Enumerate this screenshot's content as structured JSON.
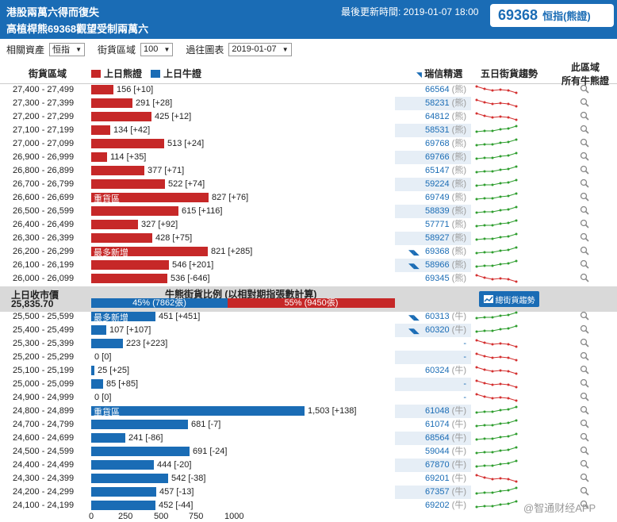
{
  "header": {
    "title_line1": "港股兩萬六得而復失",
    "title_line2": "高植桿熊69368觀望受制兩萬六",
    "update_text": "最後更新時間: 2019-01-07 18:00",
    "code": "69368",
    "code_label": "恒指(熊證)"
  },
  "filters": {
    "asset_label": "相關資產",
    "asset_value": "恒指",
    "zone_label": "街貨區域",
    "zone_value": "100",
    "date_label": "過往圖表",
    "date_value": "2019-01-07"
  },
  "columns": {
    "zone": "街貨區域",
    "bear_legend": "上日熊證",
    "bull_legend": "上日牛證",
    "pick": "瑞信精選",
    "trend": "五日街貨趨勢",
    "all_line1": "此區域",
    "all_line2": "所有牛熊證"
  },
  "colors": {
    "bear": "#c62828",
    "bull": "#1a6cb5",
    "up": "#2e9e2e",
    "down": "#d43030"
  },
  "bear_rows": [
    {
      "range": "27,400 - 27,499",
      "value": 156,
      "change": "+10",
      "label": "156 [+10]",
      "code": "66564",
      "type": "(熊)",
      "pick": false,
      "trend": "down",
      "tag": ""
    },
    {
      "range": "27,300 - 27,399",
      "value": 291,
      "change": "+28",
      "label": "291 [+28]",
      "code": "58231",
      "type": "(熊)",
      "pick": false,
      "trend": "down",
      "tag": ""
    },
    {
      "range": "27,200 - 27,299",
      "value": 425,
      "change": "+12",
      "label": "425 [+12]",
      "code": "64812",
      "type": "(熊)",
      "pick": false,
      "trend": "down",
      "tag": ""
    },
    {
      "range": "27,100 - 27,199",
      "value": 134,
      "change": "+42",
      "label": "134 [+42]",
      "code": "58531",
      "type": "(熊)",
      "pick": false,
      "trend": "up",
      "tag": ""
    },
    {
      "range": "27,000 - 27,099",
      "value": 513,
      "change": "+24",
      "label": "513 [+24]",
      "code": "69768",
      "type": "(熊)",
      "pick": false,
      "trend": "up",
      "tag": ""
    },
    {
      "range": "26,900 - 26,999",
      "value": 114,
      "change": "+35",
      "label": "114 [+35]",
      "code": "69766",
      "type": "(熊)",
      "pick": false,
      "trend": "up",
      "tag": ""
    },
    {
      "range": "26,800 - 26,899",
      "value": 377,
      "change": "+71",
      "label": "377 [+71]",
      "code": "65147",
      "type": "(熊)",
      "pick": false,
      "trend": "up",
      "tag": ""
    },
    {
      "range": "26,700 - 26,799",
      "value": 522,
      "change": "+74",
      "label": "522 [+74]",
      "code": "59224",
      "type": "(熊)",
      "pick": false,
      "trend": "up",
      "tag": ""
    },
    {
      "range": "26,600 - 26,699",
      "value": 827,
      "change": "+76",
      "label": "827 [+76]",
      "code": "69749",
      "type": "(熊)",
      "pick": false,
      "trend": "up",
      "tag": "重貨區"
    },
    {
      "range": "26,500 - 26,599",
      "value": 615,
      "change": "+116",
      "label": "615 [+116]",
      "code": "58839",
      "type": "(熊)",
      "pick": false,
      "trend": "up",
      "tag": ""
    },
    {
      "range": "26,400 - 26,499",
      "value": 327,
      "change": "+92",
      "label": "327 [+92]",
      "code": "57771",
      "type": "(熊)",
      "pick": false,
      "trend": "up",
      "tag": ""
    },
    {
      "range": "26,300 - 26,399",
      "value": 428,
      "change": "+75",
      "label": "428 [+75]",
      "code": "58927",
      "type": "(熊)",
      "pick": false,
      "trend": "up",
      "tag": ""
    },
    {
      "range": "26,200 - 26,299",
      "value": 821,
      "change": "+285",
      "label": "821 [+285]",
      "code": "69368",
      "type": "(熊)",
      "pick": true,
      "trend": "up",
      "tag": "最多新增"
    },
    {
      "range": "26,100 - 26,199",
      "value": 546,
      "change": "+201",
      "label": "546 [+201]",
      "code": "58966",
      "type": "(熊)",
      "pick": true,
      "trend": "up",
      "tag": ""
    },
    {
      "range": "26,000 - 26,099",
      "value": 536,
      "change": "-646",
      "label": "536 [-646]",
      "code": "69345",
      "type": "(熊)",
      "pick": false,
      "trend": "down",
      "tag": ""
    }
  ],
  "middle": {
    "close_label": "上日收市價",
    "close_value": "25,835.70",
    "ratio_title": "牛熊街貨比例 (以相對期指張數計算)",
    "bull_pct": 45,
    "bull_text": "45% (7862張)",
    "bear_pct": 55,
    "bear_text": "55% (9450張)",
    "button_label": "總街貨趨勢"
  },
  "bull_rows": [
    {
      "range": "25,500 - 25,599",
      "value": 451,
      "change": "+451",
      "label": "451 [+451]",
      "code": "60313",
      "type": "(牛)",
      "pick": true,
      "trend": "up",
      "tag": "最多新增"
    },
    {
      "range": "25,400 - 25,499",
      "value": 107,
      "change": "+107",
      "label": "107 [+107]",
      "code": "60320",
      "type": "(牛)",
      "pick": true,
      "trend": "up",
      "tag": ""
    },
    {
      "range": "25,300 - 25,399",
      "value": 223,
      "change": "+223",
      "label": "223 [+223]",
      "code": "-",
      "type": "",
      "pick": false,
      "trend": "down",
      "tag": ""
    },
    {
      "range": "25,200 - 25,299",
      "value": 0,
      "change": "0",
      "label": "0 [0]",
      "code": "-",
      "type": "",
      "pick": false,
      "trend": "down",
      "tag": ""
    },
    {
      "range": "25,100 - 25,199",
      "value": 25,
      "change": "+25",
      "label": "25 [+25]",
      "code": "60324",
      "type": "(牛)",
      "pick": false,
      "trend": "down",
      "tag": ""
    },
    {
      "range": "25,000 - 25,099",
      "value": 85,
      "change": "+85",
      "label": "85 [+85]",
      "code": "-",
      "type": "",
      "pick": false,
      "trend": "down",
      "tag": ""
    },
    {
      "range": "24,900 - 24,999",
      "value": 0,
      "change": "0",
      "label": "0 [0]",
      "code": "-",
      "type": "",
      "pick": false,
      "trend": "down",
      "tag": ""
    },
    {
      "range": "24,800 - 24,899",
      "value": 1503,
      "change": "+138",
      "label": "1,503 [+138]",
      "code": "61048",
      "type": "(牛)",
      "pick": false,
      "trend": "up",
      "tag": "重貨區"
    },
    {
      "range": "24,700 - 24,799",
      "value": 681,
      "change": "-7",
      "label": "681 [-7]",
      "code": "61074",
      "type": "(牛)",
      "pick": false,
      "trend": "up",
      "tag": ""
    },
    {
      "range": "24,600 - 24,699",
      "value": 241,
      "change": "-86",
      "label": "241 [-86]",
      "code": "68564",
      "type": "(牛)",
      "pick": false,
      "trend": "up",
      "tag": ""
    },
    {
      "range": "24,500 - 24,599",
      "value": 691,
      "change": "-24",
      "label": "691 [-24]",
      "code": "59044",
      "type": "(牛)",
      "pick": false,
      "trend": "up",
      "tag": ""
    },
    {
      "range": "24,400 - 24,499",
      "value": 444,
      "change": "-20",
      "label": "444 [-20]",
      "code": "67870",
      "type": "(牛)",
      "pick": false,
      "trend": "up",
      "tag": ""
    },
    {
      "range": "24,300 - 24,399",
      "value": 542,
      "change": "-38",
      "label": "542 [-38]",
      "code": "69201",
      "type": "(牛)",
      "pick": false,
      "trend": "down",
      "tag": ""
    },
    {
      "range": "24,200 - 24,299",
      "value": 457,
      "change": "-13",
      "label": "457 [-13]",
      "code": "67357",
      "type": "(牛)",
      "pick": false,
      "trend": "up",
      "tag": ""
    },
    {
      "range": "24,100 - 24,199",
      "value": 452,
      "change": "-44",
      "label": "452 [-44]",
      "code": "69202",
      "type": "(牛)",
      "pick": false,
      "trend": "up",
      "tag": ""
    }
  ],
  "axis_ticks": [
    "0",
    "250",
    "500",
    "750",
    "1000"
  ],
  "watermark": "@智通财经APP"
}
